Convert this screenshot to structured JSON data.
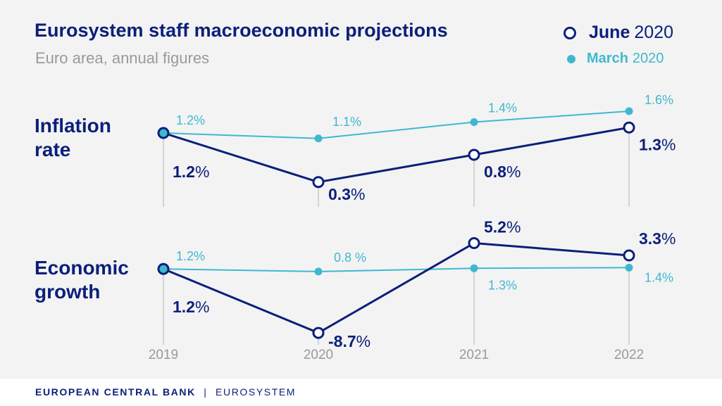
{
  "title": "Eurosystem staff macroeconomic projections",
  "subtitle": "Euro area, annual figures",
  "legend": {
    "june": {
      "bold": "June",
      "rest": "2020"
    },
    "march": {
      "bold": "March",
      "rest": "2020"
    }
  },
  "colors": {
    "june": "#0b1f7a",
    "march": "#3fb8cf",
    "axis": "#9a9a9a"
  },
  "footer": {
    "bank": "EUROPEAN CENTRAL BANK",
    "separator": "|",
    "system": "EUROSYSTEM"
  },
  "chart_data": [
    {
      "type": "line",
      "panel_label": [
        "Inflation",
        "rate"
      ],
      "categories": [
        "2019",
        "2020",
        "2021",
        "2022"
      ],
      "ylim": [
        0.0,
        2.0
      ],
      "series": [
        {
          "name": "June 2020",
          "values": [
            1.2,
            0.3,
            0.8,
            1.3
          ],
          "labels": [
            "1.2%",
            "0.3%",
            "0.8%",
            "1.3%"
          ]
        },
        {
          "name": "March 2020",
          "values": [
            1.2,
            1.1,
            1.4,
            1.6
          ],
          "labels": [
            "1.2%",
            "1.1%",
            "1.4%",
            "1.6%"
          ]
        }
      ]
    },
    {
      "type": "line",
      "panel_label": [
        "Economic",
        "growth"
      ],
      "categories": [
        "2019",
        "2020",
        "2021",
        "2022"
      ],
      "ylim": [
        -10.0,
        7.0
      ],
      "series": [
        {
          "name": "June 2020",
          "values": [
            1.2,
            -8.7,
            5.2,
            3.3
          ],
          "labels": [
            "1.2%",
            "-8.7%",
            "5.2%",
            "3.3%"
          ]
        },
        {
          "name": "March 2020",
          "values": [
            1.2,
            0.8,
            1.3,
            1.4
          ],
          "labels": [
            "1.2%",
            "0.8 %",
            "1.3%",
            "1.4%"
          ]
        }
      ]
    }
  ]
}
